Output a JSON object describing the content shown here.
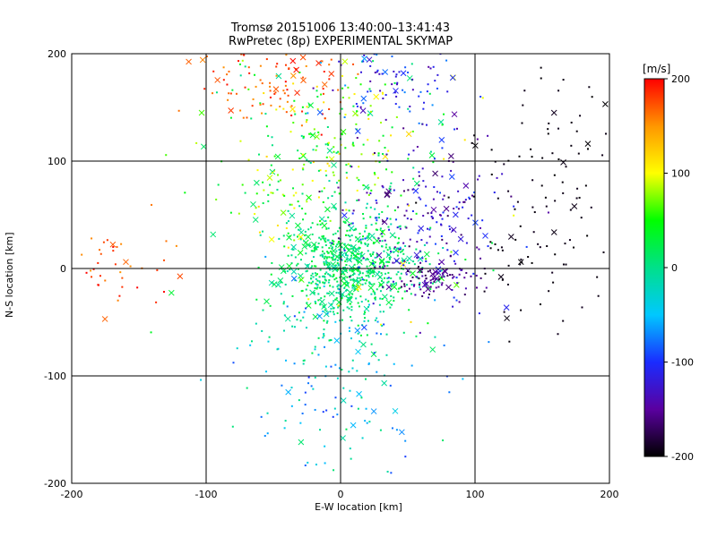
{
  "title": "Tromsø 20151006 13:40:00–13:41:43",
  "subtitle": "RwPretec (8p) EXPERIMENTAL SKYMAP",
  "colorbar": {
    "unit": "[m/s]",
    "ticks": [
      "200",
      "100",
      "0",
      "-100",
      "-200"
    ],
    "min": -200,
    "max": 200,
    "colors": [
      "#000000",
      "#5a00a0",
      "#1a2cff",
      "#00c8ff",
      "#00e08a",
      "#00ff00",
      "#ffff00",
      "#ff9600",
      "#ff0000"
    ]
  },
  "chart_data": {
    "type": "scatter",
    "title": "Tromsø 20151006 13:40:00–13:41:43",
    "subtitle": "RwPretec (8p) EXPERIMENTAL SKYMAP",
    "xlabel": "E-W location [km]",
    "ylabel": "N-S location [km]",
    "xlim": [
      -200,
      200
    ],
    "ylim": [
      -200,
      200
    ],
    "xticks": [
      "-200",
      "-100",
      "0",
      "100",
      "200"
    ],
    "yticks": [
      "-200",
      "-100",
      "0",
      "100",
      "200"
    ],
    "grid": true,
    "markers": [
      "dot",
      "x"
    ],
    "color_variable": "velocity [m/s]",
    "clusters": [
      {
        "region": "center",
        "x_center": 5,
        "y_center": 0,
        "x_spread": 25,
        "y_spread": 25,
        "velocity_range": [
          -20,
          40
        ],
        "count": 700
      },
      {
        "region": "north-center",
        "x_center": -10,
        "y_center": 100,
        "x_spread": 45,
        "y_spread": 60,
        "velocity_range": [
          -10,
          120
        ],
        "count": 350
      },
      {
        "region": "north-west",
        "x_center": -50,
        "y_center": 175,
        "x_spread": 30,
        "y_spread": 25,
        "velocity_range": [
          150,
          200
        ],
        "count": 110
      },
      {
        "region": "north-east top",
        "x_center": 40,
        "y_center": 175,
        "x_spread": 25,
        "y_spread": 15,
        "velocity_range": [
          -150,
          -60
        ],
        "count": 80
      },
      {
        "region": "east",
        "x_center": 60,
        "y_center": 50,
        "x_spread": 30,
        "y_spread": 40,
        "velocity_range": [
          -170,
          -90
        ],
        "count": 220
      },
      {
        "region": "east-center",
        "x_center": 70,
        "y_center": -10,
        "x_spread": 15,
        "y_spread": 8,
        "velocity_range": [
          -180,
          -130
        ],
        "count": 80
      },
      {
        "region": "far east",
        "x_center": 150,
        "y_center": 60,
        "x_spread": 35,
        "y_spread": 70,
        "velocity_range": [
          -200,
          -190
        ],
        "count": 130
      },
      {
        "region": "west",
        "x_center": -160,
        "y_center": 0,
        "x_spread": 20,
        "y_spread": 20,
        "velocity_range": [
          150,
          200
        ],
        "count": 40
      },
      {
        "region": "south",
        "x_center": 0,
        "y_center": -90,
        "x_spread": 35,
        "y_spread": 50,
        "velocity_range": [
          -100,
          20
        ],
        "count": 180
      }
    ]
  }
}
